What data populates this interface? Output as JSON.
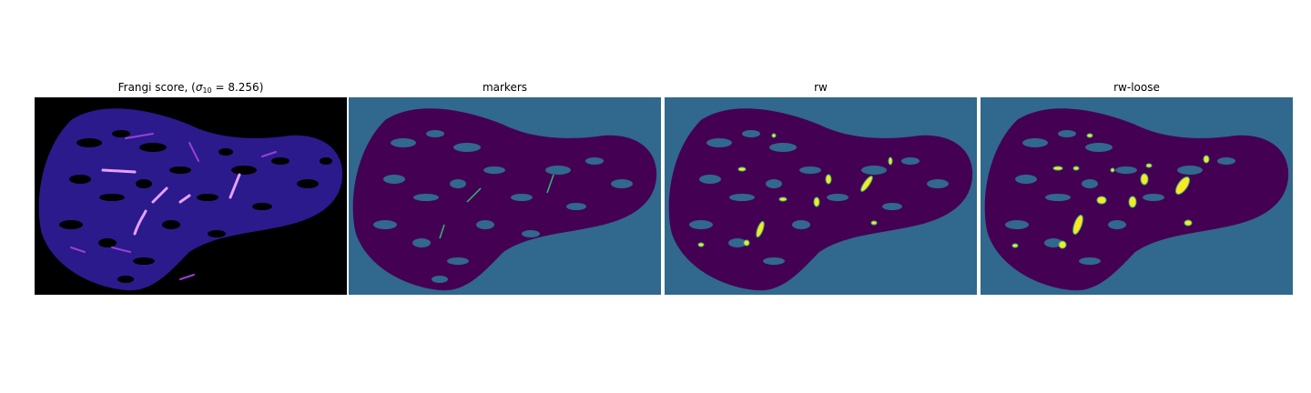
{
  "panels": [
    {
      "title_prefix": "Frangi score, (",
      "title_sigma": "σ",
      "title_sub": "10",
      "title_suffix": " = 8.256)",
      "background": "#000000",
      "tissue": "#2a1a8c"
    },
    {
      "title": "markers",
      "background": "#31688e",
      "tissue": "#440154"
    },
    {
      "title": "rw",
      "background": "#31688e",
      "tissue": "#440154"
    },
    {
      "title": "rw-loose",
      "background": "#31688e",
      "tissue": "#440154"
    }
  ],
  "colors": {
    "highlight": "#fde725",
    "vessel": "#35b779",
    "frangi_hot": "#e8a0ff",
    "frangi_mid": "#9a3fd6"
  }
}
